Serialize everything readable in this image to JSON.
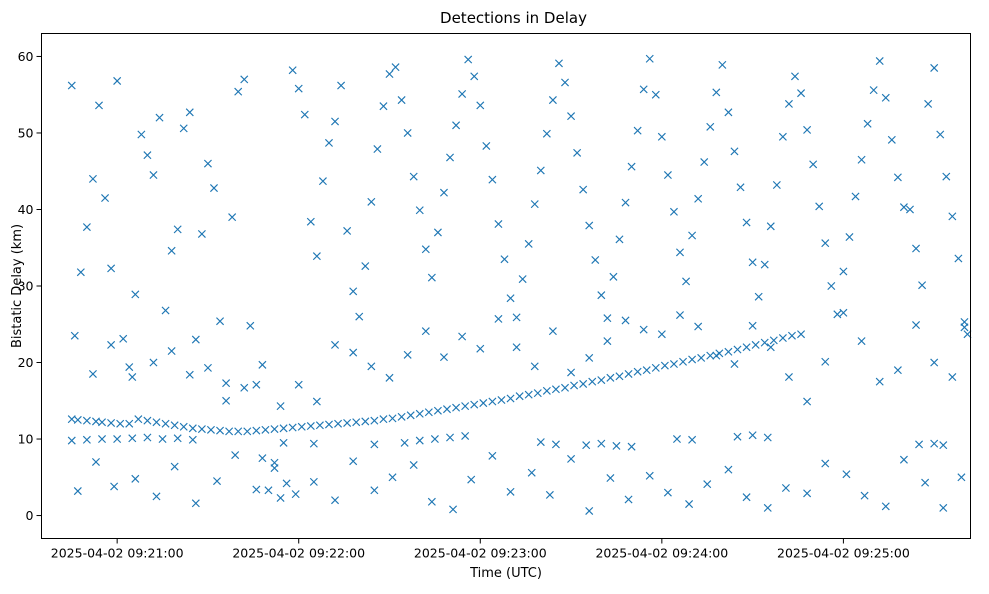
{
  "chart_data": {
    "type": "scatter",
    "title": "Detections in Delay",
    "xlabel": "Time (UTC)",
    "ylabel": "Bistatic Delay (km)",
    "marker": "x",
    "color": "#1f77b4",
    "grid": false,
    "legend": "none",
    "xlim": [
      "2025-04-02 09:20:35",
      "2025-04-02 09:25:42"
    ],
    "ylim": [
      -3.0,
      63.0
    ],
    "x_ticks": [
      "2025-04-02 09:21:00",
      "2025-04-02 09:22:00",
      "2025-04-02 09:23:00",
      "2025-04-02 09:24:00",
      "2025-04-02 09:25:00"
    ],
    "y_ticks": [
      0,
      10,
      20,
      30,
      40,
      50,
      60
    ],
    "track_points": [
      [
        "09:20:45",
        12.6
      ],
      [
        "09:20:47",
        12.5
      ],
      [
        "09:20:50",
        12.4
      ],
      [
        "09:20:53",
        12.3
      ],
      [
        "09:20:55",
        12.2
      ],
      [
        "09:20:58",
        12.1
      ],
      [
        "09:21:01",
        12.0
      ],
      [
        "09:21:04",
        12.0
      ],
      [
        "09:21:07",
        12.6
      ],
      [
        "09:21:10",
        12.4
      ],
      [
        "09:21:13",
        12.2
      ],
      [
        "09:21:16",
        12.0
      ],
      [
        "09:21:19",
        11.8
      ],
      [
        "09:21:22",
        11.6
      ],
      [
        "09:21:25",
        11.4
      ],
      [
        "09:21:28",
        11.3
      ],
      [
        "09:21:31",
        11.2
      ],
      [
        "09:21:34",
        11.1
      ],
      [
        "09:21:37",
        11.0
      ],
      [
        "09:21:40",
        11.0
      ],
      [
        "09:21:43",
        11.0
      ],
      [
        "09:21:46",
        11.1
      ],
      [
        "09:21:49",
        11.2
      ],
      [
        "09:21:52",
        11.3
      ],
      [
        "09:21:55",
        11.4
      ],
      [
        "09:21:58",
        11.5
      ],
      [
        "09:22:01",
        11.6
      ],
      [
        "09:22:04",
        11.7
      ],
      [
        "09:22:07",
        11.8
      ],
      [
        "09:22:10",
        11.9
      ],
      [
        "09:22:13",
        12.0
      ],
      [
        "09:22:16",
        12.1
      ],
      [
        "09:22:19",
        12.2
      ],
      [
        "09:22:22",
        12.3
      ],
      [
        "09:22:25",
        12.4
      ],
      [
        "09:22:28",
        12.6
      ],
      [
        "09:22:31",
        12.7
      ],
      [
        "09:22:34",
        12.9
      ],
      [
        "09:22:37",
        13.1
      ],
      [
        "09:22:40",
        13.3
      ],
      [
        "09:22:43",
        13.5
      ],
      [
        "09:22:46",
        13.7
      ],
      [
        "09:22:49",
        13.9
      ],
      [
        "09:22:52",
        14.1
      ],
      [
        "09:22:55",
        14.3
      ],
      [
        "09:22:58",
        14.5
      ],
      [
        "09:23:01",
        14.7
      ],
      [
        "09:23:04",
        14.9
      ],
      [
        "09:23:07",
        15.1
      ],
      [
        "09:23:10",
        15.3
      ],
      [
        "09:23:13",
        15.6
      ],
      [
        "09:23:16",
        15.8
      ],
      [
        "09:23:19",
        16.0
      ],
      [
        "09:23:22",
        16.3
      ],
      [
        "09:23:25",
        16.5
      ],
      [
        "09:23:28",
        16.7
      ],
      [
        "09:23:31",
        17.0
      ],
      [
        "09:23:34",
        17.2
      ],
      [
        "09:23:37",
        17.5
      ],
      [
        "09:23:40",
        17.7
      ],
      [
        "09:23:43",
        18.0
      ],
      [
        "09:23:46",
        18.2
      ],
      [
        "09:23:49",
        18.5
      ],
      [
        "09:23:52",
        18.8
      ],
      [
        "09:23:55",
        19.0
      ],
      [
        "09:23:58",
        19.3
      ],
      [
        "09:24:01",
        19.6
      ],
      [
        "09:24:04",
        19.8
      ],
      [
        "09:24:07",
        20.1
      ],
      [
        "09:24:10",
        20.4
      ],
      [
        "09:24:13",
        20.6
      ],
      [
        "09:24:16",
        20.9
      ],
      [
        "09:24:19",
        21.2
      ],
      [
        "09:24:22",
        21.4
      ],
      [
        "09:24:25",
        21.7
      ],
      [
        "09:24:28",
        22.0
      ],
      [
        "09:24:31",
        22.3
      ],
      [
        "09:24:34",
        22.6
      ],
      [
        "09:24:37",
        22.9
      ],
      [
        "09:24:40",
        23.2
      ],
      [
        "09:24:43",
        23.5
      ],
      [
        "09:24:46",
        23.7
      ]
    ],
    "ten_km_points": [
      [
        "09:20:45",
        9.8
      ],
      [
        "09:20:50",
        9.9
      ],
      [
        "09:20:55",
        10.0
      ],
      [
        "09:21:00",
        10.0
      ],
      [
        "09:21:05",
        10.1
      ],
      [
        "09:21:10",
        10.2
      ],
      [
        "09:21:15",
        10.0
      ],
      [
        "09:21:20",
        10.1
      ],
      [
        "09:21:25",
        9.9
      ],
      [
        "09:21:55",
        9.5
      ],
      [
        "09:22:05",
        9.4
      ],
      [
        "09:22:25",
        9.3
      ],
      [
        "09:22:35",
        9.5
      ],
      [
        "09:22:40",
        9.8
      ],
      [
        "09:22:45",
        10.0
      ],
      [
        "09:22:50",
        10.2
      ],
      [
        "09:22:55",
        10.4
      ],
      [
        "09:23:20",
        9.6
      ],
      [
        "09:23:25",
        9.3
      ],
      [
        "09:23:35",
        9.2
      ],
      [
        "09:23:40",
        9.4
      ],
      [
        "09:23:45",
        9.1
      ],
      [
        "09:23:50",
        9.0
      ],
      [
        "09:24:05",
        10.0
      ],
      [
        "09:24:10",
        9.9
      ],
      [
        "09:24:25",
        10.3
      ],
      [
        "09:24:30",
        10.5
      ],
      [
        "09:24:35",
        10.2
      ],
      [
        "09:25:25",
        9.3
      ],
      [
        "09:25:30",
        9.4
      ],
      [
        "09:25:33",
        9.2
      ]
    ],
    "scatter_points": [
      [
        "09:20:45",
        56.2
      ],
      [
        "09:20:48",
        31.8
      ],
      [
        "09:20:50",
        37.7
      ],
      [
        "09:20:52",
        44.0
      ],
      [
        "09:20:54",
        53.6
      ],
      [
        "09:20:56",
        41.5
      ],
      [
        "09:20:58",
        32.3
      ],
      [
        "09:21:00",
        56.8
      ],
      [
        "09:21:02",
        23.1
      ],
      [
        "09:21:04",
        19.4
      ],
      [
        "09:21:06",
        28.9
      ],
      [
        "09:21:08",
        49.8
      ],
      [
        "09:21:10",
        47.1
      ],
      [
        "09:21:12",
        44.5
      ],
      [
        "09:21:14",
        52.0
      ],
      [
        "09:21:16",
        26.8
      ],
      [
        "09:21:18",
        34.6
      ],
      [
        "09:21:20",
        37.4
      ],
      [
        "09:21:22",
        50.6
      ],
      [
        "09:21:24",
        52.7
      ],
      [
        "09:21:26",
        23.0
      ],
      [
        "09:21:28",
        36.8
      ],
      [
        "09:21:30",
        46.0
      ],
      [
        "09:21:32",
        42.8
      ],
      [
        "09:21:34",
        25.4
      ],
      [
        "09:21:36",
        15.0
      ],
      [
        "09:21:38",
        39.0
      ],
      [
        "09:21:40",
        55.4
      ],
      [
        "09:21:42",
        57.0
      ],
      [
        "09:21:44",
        24.8
      ],
      [
        "09:21:46",
        17.1
      ],
      [
        "09:21:48",
        7.5
      ],
      [
        "09:21:50",
        3.3
      ],
      [
        "09:21:52",
        6.9
      ],
      [
        "09:21:54",
        2.3
      ],
      [
        "09:21:56",
        4.2
      ],
      [
        "09:21:58",
        58.2
      ],
      [
        "09:22:00",
        55.8
      ],
      [
        "09:22:02",
        52.4
      ],
      [
        "09:22:04",
        38.4
      ],
      [
        "09:22:06",
        33.9
      ],
      [
        "09:22:08",
        43.7
      ],
      [
        "09:22:10",
        48.7
      ],
      [
        "09:22:12",
        51.5
      ],
      [
        "09:22:14",
        56.2
      ],
      [
        "09:22:16",
        37.2
      ],
      [
        "09:22:18",
        29.3
      ],
      [
        "09:22:20",
        26.0
      ],
      [
        "09:22:22",
        32.6
      ],
      [
        "09:22:24",
        41.0
      ],
      [
        "09:22:26",
        47.9
      ],
      [
        "09:22:28",
        53.5
      ],
      [
        "09:22:30",
        57.7
      ],
      [
        "09:22:32",
        58.6
      ],
      [
        "09:22:34",
        54.3
      ],
      [
        "09:22:36",
        50.0
      ],
      [
        "09:22:38",
        44.3
      ],
      [
        "09:22:40",
        39.9
      ],
      [
        "09:22:42",
        34.8
      ],
      [
        "09:22:44",
        31.1
      ],
      [
        "09:22:46",
        37.0
      ],
      [
        "09:22:48",
        42.2
      ],
      [
        "09:22:50",
        46.8
      ],
      [
        "09:22:52",
        51.0
      ],
      [
        "09:22:54",
        55.1
      ],
      [
        "09:22:56",
        59.6
      ],
      [
        "09:22:58",
        57.4
      ],
      [
        "09:23:00",
        53.6
      ],
      [
        "09:23:02",
        48.3
      ],
      [
        "09:23:04",
        43.9
      ],
      [
        "09:23:06",
        38.1
      ],
      [
        "09:23:08",
        33.5
      ],
      [
        "09:23:10",
        28.4
      ],
      [
        "09:23:12",
        25.9
      ],
      [
        "09:23:14",
        30.9
      ],
      [
        "09:23:16",
        35.5
      ],
      [
        "09:23:18",
        40.7
      ],
      [
        "09:23:20",
        45.1
      ],
      [
        "09:23:22",
        49.9
      ],
      [
        "09:23:24",
        54.3
      ],
      [
        "09:23:26",
        59.1
      ],
      [
        "09:23:28",
        56.6
      ],
      [
        "09:23:30",
        52.2
      ],
      [
        "09:23:32",
        47.4
      ],
      [
        "09:23:34",
        42.6
      ],
      [
        "09:23:36",
        37.9
      ],
      [
        "09:23:38",
        33.4
      ],
      [
        "09:23:40",
        28.8
      ],
      [
        "09:23:42",
        25.8
      ],
      [
        "09:23:44",
        31.2
      ],
      [
        "09:23:46",
        36.1
      ],
      [
        "09:23:48",
        40.9
      ],
      [
        "09:23:50",
        45.6
      ],
      [
        "09:23:52",
        50.3
      ],
      [
        "09:23:54",
        55.7
      ],
      [
        "09:23:56",
        59.7
      ],
      [
        "09:23:58",
        55.0
      ],
      [
        "09:24:00",
        49.5
      ],
      [
        "09:24:02",
        44.5
      ],
      [
        "09:24:04",
        39.7
      ],
      [
        "09:24:06",
        34.4
      ],
      [
        "09:24:08",
        30.6
      ],
      [
        "09:24:10",
        36.6
      ],
      [
        "09:24:12",
        41.4
      ],
      [
        "09:24:14",
        46.2
      ],
      [
        "09:24:16",
        50.8
      ],
      [
        "09:24:18",
        55.3
      ],
      [
        "09:24:20",
        58.9
      ],
      [
        "09:24:22",
        52.7
      ],
      [
        "09:24:24",
        47.6
      ],
      [
        "09:24:26",
        42.9
      ],
      [
        "09:24:28",
        38.3
      ],
      [
        "09:24:30",
        33.1
      ],
      [
        "09:24:32",
        28.6
      ],
      [
        "09:24:34",
        32.8
      ],
      [
        "09:24:36",
        37.8
      ],
      [
        "09:24:38",
        43.2
      ],
      [
        "09:24:40",
        49.5
      ],
      [
        "09:24:42",
        53.8
      ],
      [
        "09:24:44",
        57.4
      ],
      [
        "09:24:46",
        55.2
      ],
      [
        "09:24:48",
        50.4
      ],
      [
        "09:24:50",
        45.9
      ],
      [
        "09:24:52",
        40.4
      ],
      [
        "09:24:54",
        35.6
      ],
      [
        "09:24:56",
        30.0
      ],
      [
        "09:24:58",
        26.3
      ],
      [
        "09:25:00",
        31.9
      ],
      [
        "09:25:02",
        36.4
      ],
      [
        "09:25:04",
        41.7
      ],
      [
        "09:25:06",
        46.5
      ],
      [
        "09:25:08",
        51.2
      ],
      [
        "09:25:10",
        55.6
      ],
      [
        "09:25:12",
        59.4
      ],
      [
        "09:25:14",
        54.6
      ],
      [
        "09:25:16",
        49.1
      ],
      [
        "09:25:18",
        44.2
      ],
      [
        "09:25:20",
        40.3
      ],
      [
        "09:25:22",
        40.0
      ],
      [
        "09:25:24",
        34.9
      ],
      [
        "09:25:26",
        30.1
      ],
      [
        "09:25:28",
        53.8
      ],
      [
        "09:25:30",
        58.5
      ],
      [
        "09:25:32",
        49.8
      ],
      [
        "09:25:34",
        44.3
      ],
      [
        "09:25:36",
        39.1
      ],
      [
        "09:25:38",
        33.6
      ],
      [
        "09:25:40",
        24.6
      ],
      [
        "09:25:40",
        25.3
      ],
      [
        "09:20:46",
        23.5
      ],
      [
        "09:20:52",
        18.5
      ],
      [
        "09:20:58",
        22.3
      ],
      [
        "09:21:05",
        18.1
      ],
      [
        "09:21:12",
        20.0
      ],
      [
        "09:21:18",
        21.5
      ],
      [
        "09:21:24",
        18.4
      ],
      [
        "09:21:30",
        19.3
      ],
      [
        "09:21:36",
        17.3
      ],
      [
        "09:21:42",
        16.7
      ],
      [
        "09:21:48",
        19.7
      ],
      [
        "09:21:54",
        14.3
      ],
      [
        "09:22:00",
        17.1
      ],
      [
        "09:22:06",
        14.9
      ],
      [
        "09:22:12",
        22.3
      ],
      [
        "09:22:18",
        21.3
      ],
      [
        "09:22:24",
        19.5
      ],
      [
        "09:22:30",
        18.0
      ],
      [
        "09:22:36",
        21.0
      ],
      [
        "09:22:42",
        24.1
      ],
      [
        "09:22:48",
        20.7
      ],
      [
        "09:22:54",
        23.4
      ],
      [
        "09:23:00",
        21.8
      ],
      [
        "09:23:06",
        25.7
      ],
      [
        "09:23:12",
        22.0
      ],
      [
        "09:23:18",
        19.5
      ],
      [
        "09:23:24",
        24.1
      ],
      [
        "09:23:30",
        18.7
      ],
      [
        "09:23:36",
        20.6
      ],
      [
        "09:23:42",
        22.8
      ],
      [
        "09:23:48",
        25.5
      ],
      [
        "09:23:54",
        24.3
      ],
      [
        "09:24:00",
        23.7
      ],
      [
        "09:24:06",
        26.2
      ],
      [
        "09:24:12",
        24.7
      ],
      [
        "09:24:18",
        20.9
      ],
      [
        "09:24:24",
        19.8
      ],
      [
        "09:24:30",
        24.8
      ],
      [
        "09:24:36",
        22.0
      ],
      [
        "09:24:42",
        18.1
      ],
      [
        "09:24:48",
        14.9
      ],
      [
        "09:24:54",
        20.1
      ],
      [
        "09:25:00",
        26.5
      ],
      [
        "09:25:06",
        22.8
      ],
      [
        "09:25:12",
        17.5
      ],
      [
        "09:25:18",
        19.0
      ],
      [
        "09:25:24",
        24.9
      ],
      [
        "09:25:30",
        20.0
      ],
      [
        "09:25:36",
        18.1
      ],
      [
        "09:25:41",
        23.7
      ],
      [
        "09:20:47",
        3.2
      ],
      [
        "09:20:53",
        7.0
      ],
      [
        "09:20:59",
        3.8
      ],
      [
        "09:21:06",
        4.8
      ],
      [
        "09:21:13",
        2.5
      ],
      [
        "09:21:19",
        6.4
      ],
      [
        "09:21:26",
        1.6
      ],
      [
        "09:21:33",
        4.5
      ],
      [
        "09:21:39",
        7.9
      ],
      [
        "09:21:46",
        3.4
      ],
      [
        "09:21:52",
        6.2
      ],
      [
        "09:21:59",
        2.8
      ],
      [
        "09:22:05",
        4.4
      ],
      [
        "09:22:12",
        2.0
      ],
      [
        "09:22:18",
        7.1
      ],
      [
        "09:22:25",
        3.3
      ],
      [
        "09:22:31",
        5.0
      ],
      [
        "09:22:38",
        6.6
      ],
      [
        "09:22:44",
        1.8
      ],
      [
        "09:22:51",
        0.8
      ],
      [
        "09:22:57",
        4.7
      ],
      [
        "09:23:04",
        7.8
      ],
      [
        "09:23:10",
        3.1
      ],
      [
        "09:23:17",
        5.6
      ],
      [
        "09:23:23",
        2.7
      ],
      [
        "09:23:30",
        7.4
      ],
      [
        "09:23:36",
        0.6
      ],
      [
        "09:23:43",
        4.9
      ],
      [
        "09:23:49",
        2.1
      ],
      [
        "09:23:56",
        5.2
      ],
      [
        "09:24:02",
        3.0
      ],
      [
        "09:24:09",
        1.5
      ],
      [
        "09:24:15",
        4.1
      ],
      [
        "09:24:22",
        6.0
      ],
      [
        "09:24:28",
        2.4
      ],
      [
        "09:24:35",
        1.0
      ],
      [
        "09:24:41",
        3.6
      ],
      [
        "09:24:48",
        2.9
      ],
      [
        "09:24:54",
        6.8
      ],
      [
        "09:25:01",
        5.4
      ],
      [
        "09:25:07",
        2.6
      ],
      [
        "09:25:14",
        1.2
      ],
      [
        "09:25:20",
        7.3
      ],
      [
        "09:25:27",
        4.3
      ],
      [
        "09:25:33",
        1.0
      ],
      [
        "09:25:39",
        5.0
      ]
    ]
  }
}
